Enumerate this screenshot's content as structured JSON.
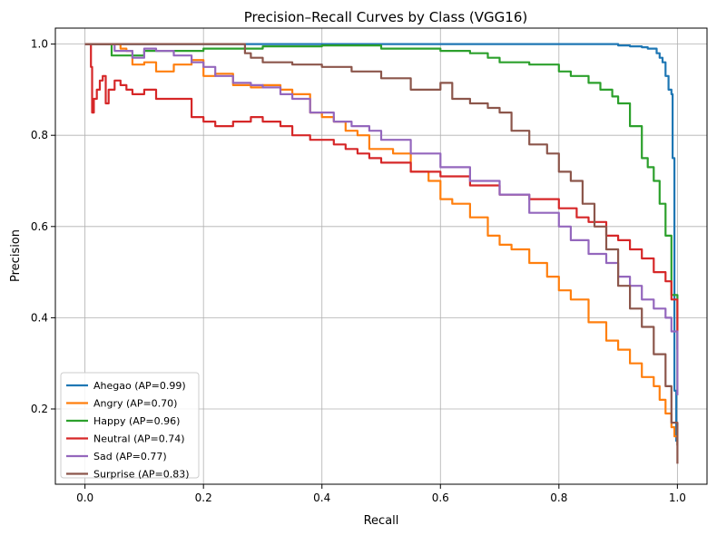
{
  "chart_data": {
    "type": "line",
    "title": "Precision–Recall Curves by Class (VGG16)",
    "xlabel": "Recall",
    "ylabel": "Precision",
    "xlim": [
      -0.05,
      1.05
    ],
    "ylim": [
      0.035,
      1.035
    ],
    "xticks": [
      0.0,
      0.2,
      0.4,
      0.6,
      0.8,
      1.0
    ],
    "xtick_labels": [
      "0.0",
      "0.2",
      "0.4",
      "0.6",
      "0.8",
      "1.0"
    ],
    "yticks": [
      0.2,
      0.4,
      0.6,
      0.8,
      1.0
    ],
    "ytick_labels": [
      "0.2",
      "0.4",
      "0.6",
      "0.8",
      "1.0"
    ],
    "grid": true,
    "legend_position": "lower-left",
    "series": [
      {
        "name": "Ahegao (AP=0.99)",
        "color": "#1f77b4",
        "x": [
          0.0,
          0.2,
          0.4,
          0.6,
          0.8,
          0.89,
          0.9,
          0.92,
          0.94,
          0.95,
          0.96,
          0.965,
          0.97,
          0.975,
          0.98,
          0.985,
          0.99,
          0.992,
          0.995,
          0.995,
          0.997,
          0.998,
          1.0
        ],
        "y": [
          1.0,
          1.0,
          1.0,
          1.0,
          1.0,
          1.0,
          0.997,
          0.995,
          0.993,
          0.99,
          0.99,
          0.98,
          0.97,
          0.96,
          0.93,
          0.9,
          0.89,
          0.75,
          0.75,
          0.24,
          0.24,
          0.13,
          0.12
        ]
      },
      {
        "name": "Angry (AP=0.70)",
        "color": "#ff7f0e",
        "x": [
          0.0,
          0.005,
          0.02,
          0.04,
          0.06,
          0.07,
          0.08,
          0.1,
          0.12,
          0.15,
          0.18,
          0.2,
          0.22,
          0.25,
          0.28,
          0.3,
          0.33,
          0.35,
          0.38,
          0.4,
          0.42,
          0.44,
          0.46,
          0.48,
          0.5,
          0.52,
          0.55,
          0.58,
          0.6,
          0.62,
          0.65,
          0.68,
          0.7,
          0.72,
          0.75,
          0.78,
          0.8,
          0.82,
          0.85,
          0.88,
          0.9,
          0.92,
          0.94,
          0.96,
          0.97,
          0.98,
          0.99,
          0.995,
          1.0
        ],
        "y": [
          1.0,
          1.0,
          1.0,
          1.0,
          0.99,
          0.985,
          0.955,
          0.96,
          0.94,
          0.955,
          0.965,
          0.93,
          0.935,
          0.91,
          0.905,
          0.91,
          0.9,
          0.89,
          0.85,
          0.84,
          0.83,
          0.81,
          0.8,
          0.77,
          0.77,
          0.76,
          0.72,
          0.7,
          0.66,
          0.65,
          0.62,
          0.58,
          0.56,
          0.55,
          0.52,
          0.49,
          0.46,
          0.44,
          0.39,
          0.35,
          0.33,
          0.3,
          0.27,
          0.25,
          0.22,
          0.19,
          0.16,
          0.14,
          0.12
        ]
      },
      {
        "name": "Happy (AP=0.96)",
        "color": "#2ca02c",
        "x": [
          0.0,
          0.04,
          0.045,
          0.1,
          0.2,
          0.3,
          0.4,
          0.5,
          0.6,
          0.65,
          0.68,
          0.7,
          0.75,
          0.78,
          0.8,
          0.82,
          0.85,
          0.87,
          0.89,
          0.9,
          0.92,
          0.94,
          0.95,
          0.96,
          0.97,
          0.98,
          0.99,
          1.0
        ],
        "y": [
          1.0,
          1.0,
          0.975,
          0.985,
          0.99,
          0.995,
          0.997,
          0.99,
          0.985,
          0.98,
          0.97,
          0.96,
          0.955,
          0.955,
          0.94,
          0.93,
          0.915,
          0.9,
          0.885,
          0.87,
          0.82,
          0.75,
          0.73,
          0.7,
          0.65,
          0.58,
          0.45,
          0.24
        ]
      },
      {
        "name": "Neutral (AP=0.74)",
        "color": "#d62728",
        "x": [
          0.0,
          0.005,
          0.01,
          0.012,
          0.015,
          0.02,
          0.025,
          0.03,
          0.035,
          0.04,
          0.05,
          0.06,
          0.07,
          0.08,
          0.1,
          0.12,
          0.15,
          0.18,
          0.2,
          0.22,
          0.25,
          0.28,
          0.3,
          0.33,
          0.35,
          0.38,
          0.4,
          0.42,
          0.44,
          0.46,
          0.48,
          0.5,
          0.55,
          0.6,
          0.65,
          0.7,
          0.75,
          0.8,
          0.83,
          0.85,
          0.88,
          0.9,
          0.92,
          0.94,
          0.96,
          0.98,
          0.99,
          1.0
        ],
        "y": [
          1.0,
          1.0,
          0.95,
          0.85,
          0.88,
          0.9,
          0.92,
          0.93,
          0.87,
          0.9,
          0.92,
          0.91,
          0.9,
          0.89,
          0.9,
          0.88,
          0.88,
          0.84,
          0.83,
          0.82,
          0.83,
          0.84,
          0.83,
          0.82,
          0.8,
          0.79,
          0.79,
          0.78,
          0.77,
          0.76,
          0.75,
          0.74,
          0.72,
          0.71,
          0.69,
          0.67,
          0.66,
          0.64,
          0.62,
          0.61,
          0.58,
          0.57,
          0.55,
          0.53,
          0.5,
          0.48,
          0.44,
          0.33
        ]
      },
      {
        "name": "Sad (AP=0.77)",
        "color": "#9467bd",
        "x": [
          0.0,
          0.05,
          0.08,
          0.1,
          0.12,
          0.15,
          0.18,
          0.2,
          0.22,
          0.25,
          0.28,
          0.3,
          0.33,
          0.35,
          0.38,
          0.4,
          0.42,
          0.45,
          0.48,
          0.5,
          0.55,
          0.6,
          0.65,
          0.7,
          0.75,
          0.8,
          0.82,
          0.85,
          0.88,
          0.9,
          0.92,
          0.94,
          0.96,
          0.98,
          0.99,
          1.0
        ],
        "y": [
          1.0,
          0.985,
          0.97,
          0.99,
          0.985,
          0.975,
          0.96,
          0.95,
          0.93,
          0.915,
          0.91,
          0.905,
          0.89,
          0.88,
          0.85,
          0.85,
          0.83,
          0.82,
          0.81,
          0.79,
          0.76,
          0.73,
          0.7,
          0.67,
          0.63,
          0.6,
          0.57,
          0.54,
          0.52,
          0.49,
          0.47,
          0.44,
          0.42,
          0.4,
          0.37,
          0.23
        ]
      },
      {
        "name": "Surprise (AP=0.83)",
        "color": "#8c564b",
        "x": [
          0.0,
          0.1,
          0.2,
          0.26,
          0.27,
          0.28,
          0.3,
          0.35,
          0.4,
          0.45,
          0.5,
          0.55,
          0.6,
          0.62,
          0.65,
          0.68,
          0.7,
          0.72,
          0.75,
          0.78,
          0.8,
          0.82,
          0.84,
          0.86,
          0.88,
          0.9,
          0.92,
          0.94,
          0.96,
          0.98,
          0.99,
          1.0
        ],
        "y": [
          1.0,
          1.0,
          1.0,
          1.0,
          0.98,
          0.97,
          0.96,
          0.955,
          0.95,
          0.94,
          0.925,
          0.9,
          0.915,
          0.88,
          0.87,
          0.86,
          0.85,
          0.81,
          0.78,
          0.76,
          0.72,
          0.7,
          0.65,
          0.6,
          0.55,
          0.47,
          0.42,
          0.38,
          0.32,
          0.25,
          0.17,
          0.08
        ]
      }
    ]
  }
}
